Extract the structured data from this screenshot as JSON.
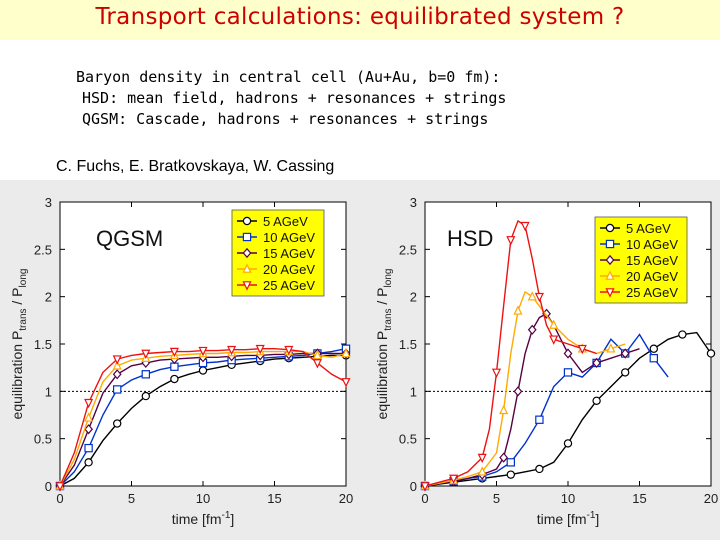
{
  "slide": {
    "title": "Transport calculations: equilibrated system ?",
    "lines": [
      "Baryon density in central cell (Au+Au, b=0 fm):",
      "HSD: mean field, hadrons + resonances + strings",
      "QGSM: Cascade, hadrons + resonances + strings"
    ],
    "authors": "C. Fuchs, E. Bratkovskaya,  W. Cassing"
  },
  "colors": {
    "5 AGeV": "#000000",
    "10 AGeV": "#0033cc",
    "15 AGeV": "#550044",
    "20 AGeV": "#ffaa00",
    "25 AGeV": "#ee1111",
    "legend_bg": "#ffff00",
    "title": "#cc0000"
  },
  "chart_data": [
    {
      "type": "line",
      "panel_label": "QGSM",
      "xlabel": "time [fm",
      "xlabel_sup": "-1",
      "xlabel_end": "]",
      "ylabel": "equilibration P",
      "ylabel_sub1": "trans",
      "ylabel_mid": " / P",
      "ylabel_sub2": "long",
      "xlim": [
        0,
        20
      ],
      "ylim": [
        0,
        3
      ],
      "xticks": [
        "0",
        "5",
        "10",
        "15",
        "20"
      ],
      "yticks": [
        "0",
        "0.5",
        "1",
        "1.5",
        "2",
        "2.5",
        "3"
      ],
      "reference_line_y": 1,
      "legend_position": "top-right",
      "series": [
        {
          "name": "5 AGeV",
          "marker": "circle",
          "x": [
            0,
            1,
            2,
            3,
            4,
            5,
            6,
            7,
            8,
            9,
            10,
            11,
            12,
            13,
            14,
            15,
            16,
            17,
            18,
            19,
            20
          ],
          "y": [
            0.0,
            0.08,
            0.25,
            0.48,
            0.66,
            0.82,
            0.95,
            1.05,
            1.13,
            1.18,
            1.22,
            1.25,
            1.28,
            1.3,
            1.32,
            1.34,
            1.35,
            1.36,
            1.37,
            1.38,
            1.38
          ]
        },
        {
          "name": "10 AGeV",
          "marker": "square",
          "x": [
            0,
            1,
            2,
            3,
            4,
            5,
            6,
            7,
            8,
            9,
            10,
            11,
            12,
            13,
            14,
            15,
            16,
            17,
            18,
            19,
            20
          ],
          "y": [
            0.0,
            0.15,
            0.4,
            0.75,
            1.02,
            1.12,
            1.18,
            1.23,
            1.26,
            1.28,
            1.3,
            1.31,
            1.33,
            1.34,
            1.35,
            1.36,
            1.37,
            1.38,
            1.4,
            1.42,
            1.45
          ]
        },
        {
          "name": "15 AGeV",
          "marker": "diamond",
          "x": [
            0,
            1,
            2,
            3,
            4,
            5,
            6,
            7,
            8,
            9,
            10,
            11,
            12,
            13,
            14,
            15,
            16,
            17,
            18,
            19,
            20
          ],
          "y": [
            0.0,
            0.22,
            0.6,
            0.98,
            1.18,
            1.27,
            1.3,
            1.33,
            1.34,
            1.35,
            1.36,
            1.36,
            1.37,
            1.38,
            1.38,
            1.39,
            1.39,
            1.4,
            1.4,
            1.4,
            1.4
          ]
        },
        {
          "name": "20 AGeV",
          "marker": "triangle-up",
          "x": [
            0,
            1,
            2,
            3,
            4,
            5,
            6,
            7,
            8,
            9,
            10,
            11,
            12,
            13,
            14,
            15,
            16,
            17,
            18,
            19,
            20
          ],
          "y": [
            0.0,
            0.28,
            0.72,
            1.1,
            1.27,
            1.33,
            1.35,
            1.37,
            1.38,
            1.39,
            1.4,
            1.4,
            1.41,
            1.41,
            1.42,
            1.42,
            1.42,
            1.42,
            1.38,
            1.36,
            1.4
          ]
        },
        {
          "name": "25 AGeV",
          "marker": "triangle-down",
          "x": [
            0,
            1,
            2,
            3,
            4,
            5,
            6,
            7,
            8,
            9,
            10,
            11,
            12,
            13,
            14,
            15,
            16,
            17,
            18,
            19,
            20
          ],
          "y": [
            0.0,
            0.35,
            0.88,
            1.2,
            1.34,
            1.38,
            1.4,
            1.41,
            1.42,
            1.42,
            1.43,
            1.43,
            1.44,
            1.44,
            1.45,
            1.45,
            1.44,
            1.42,
            1.3,
            1.18,
            1.1
          ]
        }
      ]
    },
    {
      "type": "line",
      "panel_label": "HSD",
      "xlabel": "time [fm",
      "xlabel_sup": "-1",
      "xlabel_end": "]",
      "ylabel": "equilibration P",
      "ylabel_sub1": "trans",
      "ylabel_mid": " / P",
      "ylabel_sub2": "long",
      "xlim": [
        0,
        20
      ],
      "ylim": [
        0,
        3
      ],
      "xticks": [
        "0",
        "5",
        "10",
        "15",
        "20"
      ],
      "yticks": [
        "0",
        "0.5",
        "1",
        "1.5",
        "2",
        "2.5",
        "3"
      ],
      "reference_line_y": 1,
      "legend_position": "top-right",
      "series": [
        {
          "name": "5 AGeV",
          "marker": "circle",
          "x": [
            0,
            1,
            2,
            3,
            4,
            5,
            6,
            7,
            8,
            9,
            10,
            11,
            12,
            13,
            14,
            15,
            16,
            17,
            18,
            19,
            20
          ],
          "y": [
            0.0,
            0.02,
            0.04,
            0.06,
            0.08,
            0.1,
            0.12,
            0.15,
            0.18,
            0.25,
            0.45,
            0.7,
            0.9,
            1.05,
            1.2,
            1.35,
            1.45,
            1.55,
            1.6,
            1.62,
            1.4
          ]
        },
        {
          "name": "10 AGeV",
          "marker": "square",
          "x": [
            0,
            1,
            2,
            3,
            4,
            5,
            6,
            7,
            8,
            9,
            10,
            11,
            12,
            13,
            14,
            15,
            16,
            17
          ],
          "y": [
            0.0,
            0.03,
            0.05,
            0.08,
            0.1,
            0.15,
            0.25,
            0.45,
            0.7,
            1.05,
            1.2,
            1.15,
            1.3,
            1.55,
            1.4,
            1.6,
            1.35,
            1.15
          ]
        },
        {
          "name": "15 AGeV",
          "marker": "diamond",
          "x": [
            0,
            1,
            2,
            3,
            4,
            5,
            5.5,
            6,
            6.5,
            7,
            7.5,
            8,
            8.5,
            9,
            10,
            11,
            12,
            13,
            14,
            15
          ],
          "y": [
            0.0,
            0.03,
            0.05,
            0.08,
            0.12,
            0.18,
            0.3,
            0.6,
            1.0,
            1.4,
            1.65,
            1.78,
            1.82,
            1.7,
            1.4,
            1.2,
            1.3,
            1.35,
            1.4,
            1.45
          ]
        },
        {
          "name": "20 AGeV",
          "marker": "triangle-up",
          "x": [
            0,
            1,
            2,
            3,
            4,
            5,
            5.5,
            6,
            6.5,
            7,
            7.5,
            8,
            9,
            10,
            11,
            12,
            13,
            14
          ],
          "y": [
            0.0,
            0.03,
            0.06,
            0.1,
            0.15,
            0.35,
            0.8,
            1.4,
            1.85,
            2.05,
            2.0,
            1.9,
            1.7,
            1.55,
            1.45,
            1.4,
            1.45,
            1.5
          ]
        },
        {
          "name": "25 AGeV",
          "marker": "triangle-down",
          "x": [
            0,
            1,
            2,
            3,
            4,
            4.5,
            5,
            5.5,
            6,
            6.5,
            7,
            7.5,
            8,
            8.5,
            9,
            10,
            11,
            12
          ],
          "y": [
            0.0,
            0.04,
            0.08,
            0.15,
            0.3,
            0.6,
            1.2,
            1.9,
            2.6,
            2.8,
            2.75,
            2.4,
            2.0,
            1.7,
            1.55,
            1.5,
            1.45,
            1.4
          ]
        }
      ]
    }
  ]
}
